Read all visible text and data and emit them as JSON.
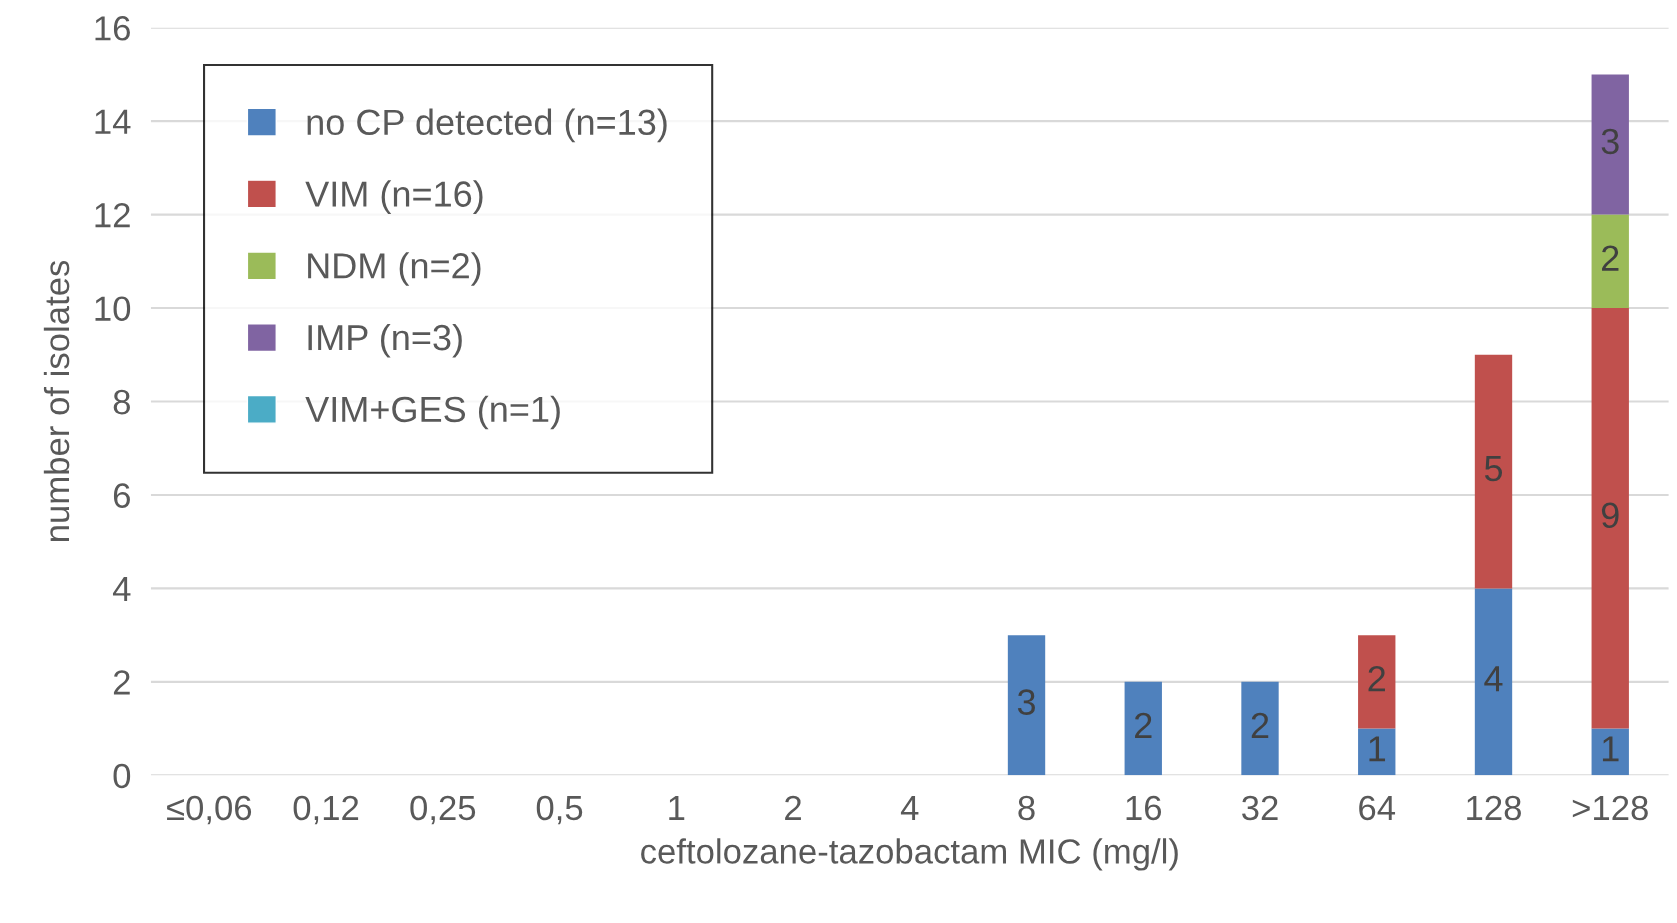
{
  "chart_data": {
    "type": "bar",
    "stacked": true,
    "xlabel": "ceftolozane-tazobactam MIC (mg/l)",
    "ylabel": "number of isolates",
    "categories": [
      "≤0,06",
      "0,12",
      "0,25",
      "0,5",
      "1",
      "2",
      "4",
      "8",
      "16",
      "32",
      "64",
      "128",
      ">128"
    ],
    "series": [
      {
        "name": "no CP detected (n=13)",
        "color": "#4f81bd",
        "values": [
          0,
          0,
          0,
          0,
          0,
          0,
          0,
          3,
          2,
          2,
          1,
          4,
          1
        ],
        "value_labels": [
          null,
          null,
          null,
          null,
          null,
          null,
          null,
          "3",
          "2",
          "2",
          "1",
          "4",
          "1"
        ]
      },
      {
        "name": "VIM (n=16)",
        "color": "#c0504d",
        "values": [
          0,
          0,
          0,
          0,
          0,
          0,
          0,
          0,
          0,
          0,
          2,
          5,
          9
        ],
        "value_labels": [
          null,
          null,
          null,
          null,
          null,
          null,
          null,
          null,
          null,
          null,
          "2",
          "5",
          "9"
        ]
      },
      {
        "name": "NDM (n=2)",
        "color": "#9bbb59",
        "values": [
          0,
          0,
          0,
          0,
          0,
          0,
          0,
          0,
          0,
          0,
          0,
          0,
          2
        ],
        "value_labels": [
          null,
          null,
          null,
          null,
          null,
          null,
          null,
          null,
          null,
          null,
          null,
          null,
          "2"
        ]
      },
      {
        "name": "IMP (n=3)",
        "color": "#8064a2",
        "values": [
          0,
          0,
          0,
          0,
          0,
          0,
          0,
          0,
          0,
          0,
          0,
          0,
          3
        ],
        "value_labels": [
          null,
          null,
          null,
          null,
          null,
          null,
          null,
          null,
          null,
          null,
          null,
          null,
          "3"
        ]
      },
      {
        "name": "VIM+GES (n=1)",
        "color": "#4bacc6",
        "values": [
          0,
          0,
          0,
          0,
          0,
          0,
          0,
          0,
          0,
          0,
          0,
          0,
          0
        ],
        "value_labels": [
          null,
          null,
          null,
          null,
          null,
          null,
          null,
          null,
          null,
          null,
          null,
          null,
          null
        ]
      }
    ],
    "ylim": [
      0,
      16
    ],
    "yticks": [
      0,
      2,
      4,
      6,
      8,
      10,
      12,
      14,
      16
    ],
    "grid": "y",
    "legend": "top left"
  }
}
